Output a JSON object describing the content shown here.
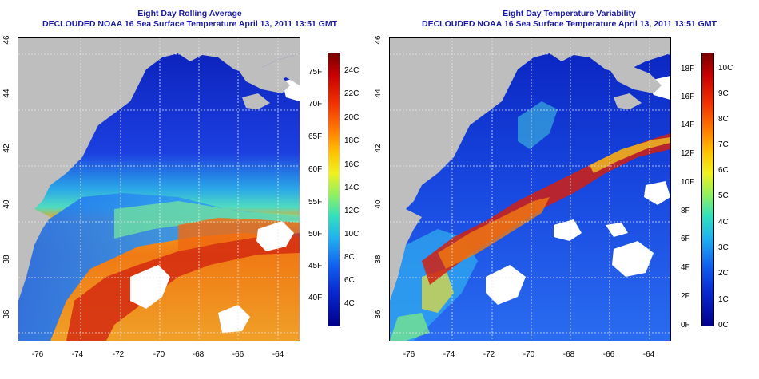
{
  "left_panel": {
    "title": "Eight Day Rolling Average",
    "subtitle": "DECLOUDED NOAA 16 Sea Surface Temperature April 13, 2011 13:51 GMT",
    "x_ticks": [
      "-76",
      "-74",
      "-72",
      "-70",
      "-68",
      "-66",
      "-64"
    ],
    "y_ticks": [
      "46",
      "44",
      "42",
      "40",
      "38",
      "36"
    ],
    "colorbar": {
      "fahrenheit_labels": [
        "75F",
        "70F",
        "65F",
        "60F",
        "55F",
        "50F",
        "45F",
        "40F"
      ],
      "celsius_labels": [
        "24C",
        "22C",
        "20C",
        "18C",
        "16C",
        "14C",
        "12C",
        "10C",
        "8C",
        "6C",
        "4C"
      ]
    }
  },
  "right_panel": {
    "title": "Eight Day Temperature Variability",
    "subtitle": "DECLOUDED NOAA 16 Sea Surface Temperature April 13, 2011 13:51 GMT",
    "x_ticks": [
      "-76",
      "-74",
      "-72",
      "-70",
      "-68",
      "-66",
      "-64"
    ],
    "y_ticks": [
      "46",
      "44",
      "42",
      "40",
      "38",
      "36"
    ],
    "colorbar": {
      "fahrenheit_labels": [
        "18F",
        "16F",
        "14F",
        "12F",
        "10F",
        "8F",
        "6F",
        "4F",
        "2F",
        "0F"
      ],
      "celsius_labels": [
        "10C",
        "9C",
        "8C",
        "7C",
        "6C",
        "5C",
        "4C",
        "3C",
        "2C",
        "1C",
        "0C"
      ]
    }
  },
  "colors": {
    "title_color": "#1a1aa6",
    "land": "#bebebe",
    "cloud": "#ffffff"
  }
}
